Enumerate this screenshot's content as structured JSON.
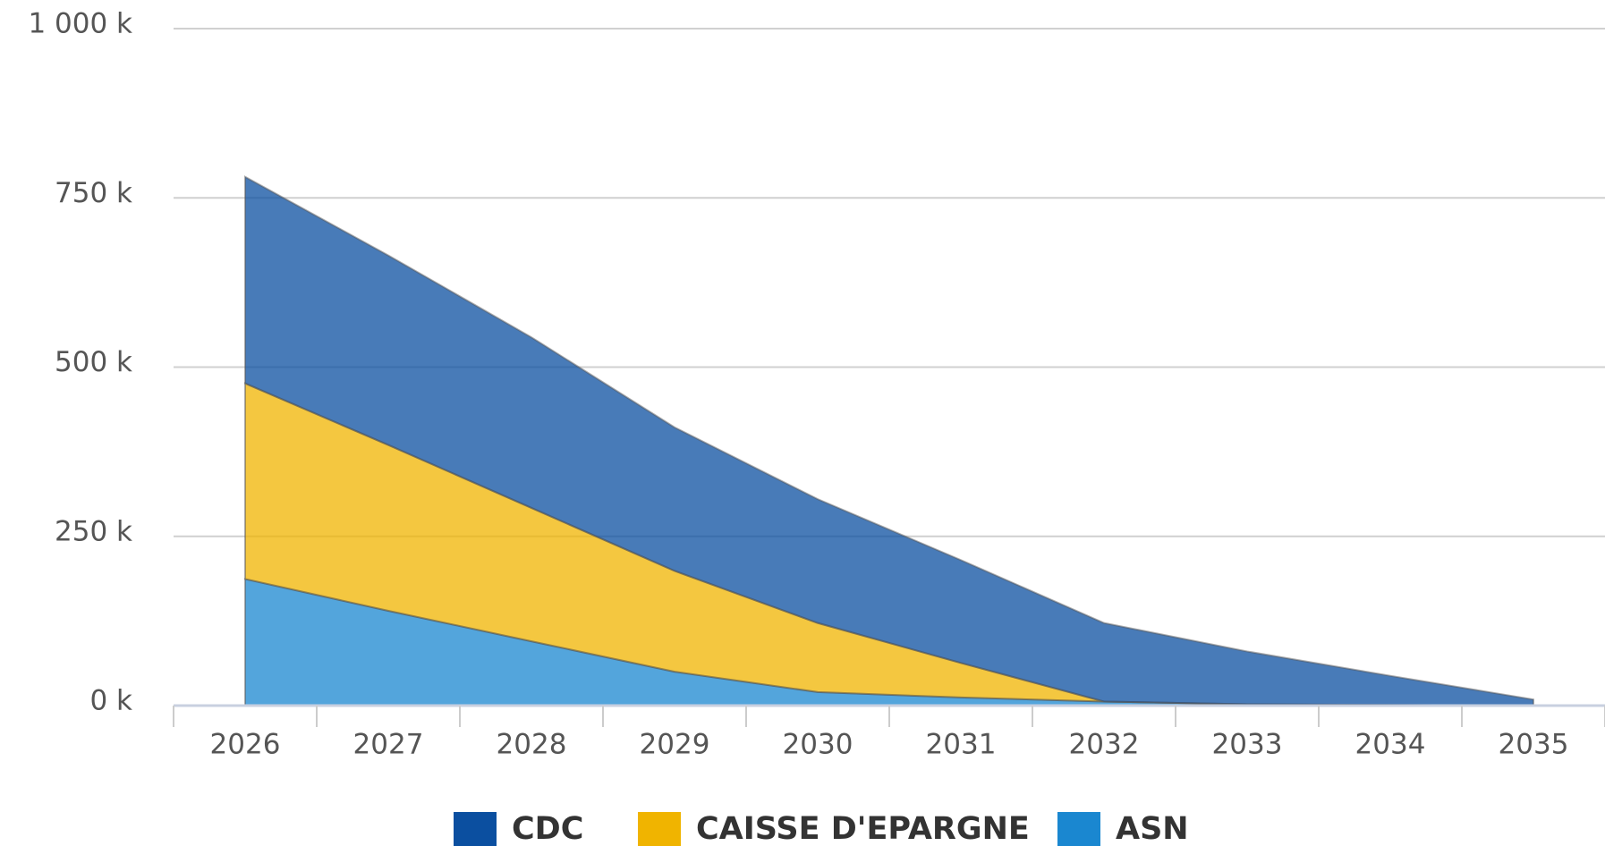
{
  "chart_data": {
    "type": "stacked_area",
    "categories": [
      "2026",
      "2027",
      "2028",
      "2029",
      "2030",
      "2031",
      "2032",
      "2033",
      "2034",
      "2035"
    ],
    "series": [
      {
        "name": "CDC",
        "color": "#0b4fa0",
        "values": [
          305000,
          280000,
          252000,
          212000,
          183000,
          152000,
          116000,
          78000,
          43000,
          9000
        ]
      },
      {
        "name": "CAISSE D'EPARGNE",
        "color": "#f0b400",
        "values": [
          289000,
          245000,
          197000,
          149000,
          102000,
          51000,
          0,
          0,
          0,
          0
        ]
      },
      {
        "name": "ASN",
        "color": "#1a87d0",
        "values": [
          187000,
          140000,
          95000,
          50000,
          20000,
          12000,
          6000,
          2000,
          1000,
          0
        ]
      }
    ],
    "ylim": [
      0,
      1000000
    ],
    "yticks": [
      {
        "value": 0,
        "label": "0 k"
      },
      {
        "value": 250000,
        "label": "250 k"
      },
      {
        "value": 500000,
        "label": "500 k"
      },
      {
        "value": 750000,
        "label": "750 k"
      },
      {
        "value": 1000000,
        "label": "1 000 k"
      }
    ],
    "grid": true
  }
}
